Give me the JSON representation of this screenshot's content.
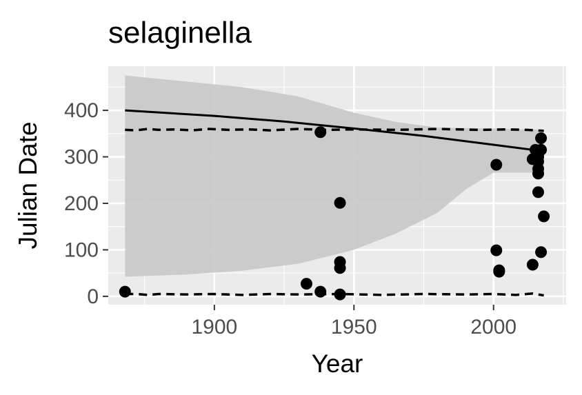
{
  "chart_data": {
    "type": "scatter",
    "title": "selaginella",
    "xlabel": "Year",
    "ylabel": "Julian Date",
    "xlim": [
      1862,
      2026
    ],
    "ylim": [
      -18,
      495
    ],
    "x_ticks": [
      1900,
      1950,
      2000
    ],
    "x_tick_labels": [
      "1900",
      "1950",
      "2000"
    ],
    "y_ticks": [
      0,
      100,
      200,
      300,
      400
    ],
    "y_tick_labels": [
      "0",
      "100",
      "200",
      "300",
      "400"
    ],
    "grid": true,
    "legend": "none",
    "points": [
      {
        "x": 1868,
        "y": 10
      },
      {
        "x": 1933,
        "y": 27
      },
      {
        "x": 1938,
        "y": 353
      },
      {
        "x": 1938,
        "y": 10
      },
      {
        "x": 1945,
        "y": 201
      },
      {
        "x": 1945,
        "y": 74
      },
      {
        "x": 1945,
        "y": 61
      },
      {
        "x": 1945,
        "y": 4
      },
      {
        "x": 2001,
        "y": 283
      },
      {
        "x": 2001,
        "y": 99
      },
      {
        "x": 2002,
        "y": 56
      },
      {
        "x": 2002,
        "y": 53
      },
      {
        "x": 2014,
        "y": 68
      },
      {
        "x": 2014,
        "y": 295
      },
      {
        "x": 2015,
        "y": 315
      },
      {
        "x": 2016,
        "y": 308
      },
      {
        "x": 2016,
        "y": 300
      },
      {
        "x": 2016,
        "y": 290
      },
      {
        "x": 2016,
        "y": 274
      },
      {
        "x": 2016,
        "y": 264
      },
      {
        "x": 2016,
        "y": 224
      },
      {
        "x": 2017,
        "y": 340
      },
      {
        "x": 2017,
        "y": 315
      },
      {
        "x": 2017,
        "y": 95
      },
      {
        "x": 2018,
        "y": 172
      }
    ],
    "fit_line": [
      {
        "x": 1868,
        "y": 400
      },
      {
        "x": 1900,
        "y": 388
      },
      {
        "x": 1925,
        "y": 376
      },
      {
        "x": 1950,
        "y": 361
      },
      {
        "x": 1975,
        "y": 345
      },
      {
        "x": 2000,
        "y": 326
      },
      {
        "x": 2018,
        "y": 312
      }
    ],
    "confidence_band": [
      {
        "x": 1868,
        "lo": 42,
        "hi": 475
      },
      {
        "x": 1890,
        "lo": 47,
        "hi": 462
      },
      {
        "x": 1910,
        "lo": 55,
        "hi": 450
      },
      {
        "x": 1930,
        "lo": 70,
        "hi": 430
      },
      {
        "x": 1950,
        "lo": 100,
        "hi": 395
      },
      {
        "x": 1965,
        "lo": 135,
        "hi": 375
      },
      {
        "x": 1980,
        "lo": 180,
        "hi": 363
      },
      {
        "x": 1990,
        "lo": 230,
        "hi": 362
      },
      {
        "x": 2000,
        "lo": 266,
        "hi": 361
      },
      {
        "x": 2018,
        "lo": 266,
        "hi": 358
      }
    ],
    "upper_dashed": [
      {
        "x": 1868,
        "y": 358
      },
      {
        "x": 1872,
        "y": 357
      },
      {
        "x": 1876,
        "y": 360
      },
      {
        "x": 1880,
        "y": 358
      },
      {
        "x": 1886,
        "y": 359
      },
      {
        "x": 1892,
        "y": 357
      },
      {
        "x": 1898,
        "y": 360
      },
      {
        "x": 1905,
        "y": 358
      },
      {
        "x": 1912,
        "y": 359
      },
      {
        "x": 1920,
        "y": 357
      },
      {
        "x": 1930,
        "y": 360
      },
      {
        "x": 1940,
        "y": 358
      },
      {
        "x": 1950,
        "y": 359
      },
      {
        "x": 1965,
        "y": 358
      },
      {
        "x": 1980,
        "y": 360
      },
      {
        "x": 1995,
        "y": 358
      },
      {
        "x": 2005,
        "y": 359
      },
      {
        "x": 2012,
        "y": 358
      },
      {
        "x": 2018,
        "y": 356
      }
    ],
    "lower_dashed": [
      {
        "x": 1868,
        "y": 5
      },
      {
        "x": 1872,
        "y": 5
      },
      {
        "x": 1876,
        "y": 3
      },
      {
        "x": 1880,
        "y": 5
      },
      {
        "x": 1890,
        "y": 4
      },
      {
        "x": 1900,
        "y": 5
      },
      {
        "x": 1910,
        "y": 3
      },
      {
        "x": 1920,
        "y": 5
      },
      {
        "x": 1930,
        "y": 4
      },
      {
        "x": 1945,
        "y": 5
      },
      {
        "x": 1960,
        "y": 3
      },
      {
        "x": 1975,
        "y": 5
      },
      {
        "x": 1990,
        "y": 4
      },
      {
        "x": 2000,
        "y": 5
      },
      {
        "x": 2008,
        "y": 3
      },
      {
        "x": 2014,
        "y": 6
      },
      {
        "x": 2018,
        "y": 2
      }
    ],
    "colors": {
      "panel": "#ebebeb",
      "grid_major": "#ffffff",
      "band": "#c8c8c8",
      "points": "#000000",
      "lines": "#000000"
    }
  }
}
